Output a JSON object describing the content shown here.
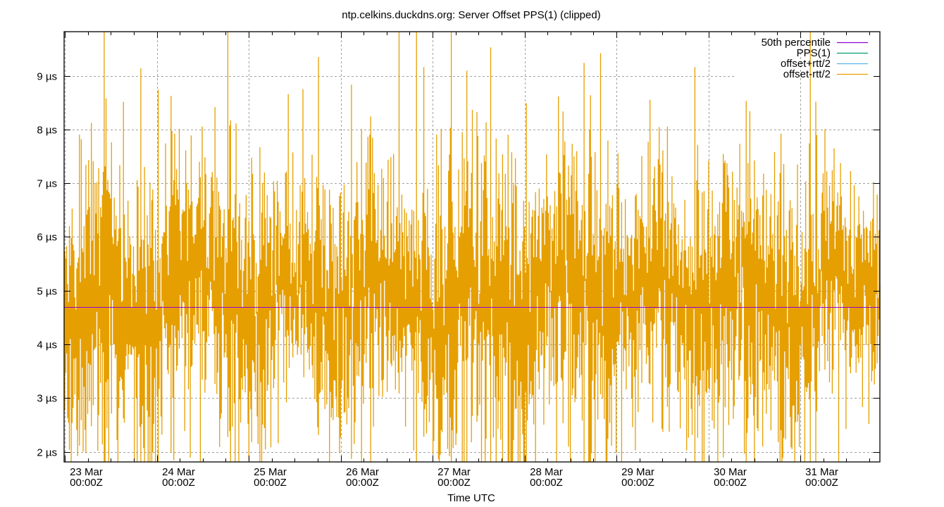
{
  "chart_data": {
    "type": "line",
    "title": "ntp.celkins.duckdns.org: Server Offset PPS(1) (clipped)",
    "xlabel": "Time UTC",
    "ylabel": "",
    "x_ticks": [
      {
        "day": "23 Mar",
        "time": "00:00Z"
      },
      {
        "day": "24 Mar",
        "time": "00:00Z"
      },
      {
        "day": "25 Mar",
        "time": "00:00Z"
      },
      {
        "day": "26 Mar",
        "time": "00:00Z"
      },
      {
        "day": "27 Mar",
        "time": "00:00Z"
      },
      {
        "day": "28 Mar",
        "time": "00:00Z"
      },
      {
        "day": "29 Mar",
        "time": "00:00Z"
      },
      {
        "day": "30 Mar",
        "time": "00:00Z"
      },
      {
        "day": "31 Mar",
        "time": "00:00Z"
      }
    ],
    "x_range_days": [
      0,
      8.87
    ],
    "minor_ticks_per_day": 4,
    "y_ticks": [
      "2 µs",
      "3 µs",
      "4 µs",
      "5 µs",
      "6 µs",
      "7 µs",
      "8 µs",
      "9 µs"
    ],
    "y_tick_values": [
      2,
      3,
      4,
      5,
      6,
      7,
      8,
      9
    ],
    "ylim": [
      1.81,
      9.82
    ],
    "y_unit": "µs",
    "grid": true,
    "legend_position": "top-right",
    "series": [
      {
        "name": "50th percentile",
        "color": "#9400d3",
        "type": "hline",
        "value": 4.7
      },
      {
        "name": "PPS(1)",
        "color": "#009e73",
        "type": "line",
        "values": []
      },
      {
        "name": "offset+rtt/2",
        "color": "#56b4e9",
        "type": "line",
        "values": []
      },
      {
        "name": "offset-rtt/2",
        "color": "#e69f00",
        "type": "errorbars",
        "description": "dense vertical error bars per sample, spanning roughly 2–9.8 µs, centered near 4.7–5 µs, clipped to axis range",
        "daily_center_estimate_us": [
          4.6,
          5.0,
          4.8,
          4.9,
          4.6,
          4.9,
          4.9,
          4.8,
          5.0
        ],
        "daily_spread_estimate_us": [
          1.8,
          1.6,
          1.7,
          1.5,
          2.0,
          1.6,
          1.5,
          1.6,
          1.4
        ]
      }
    ]
  }
}
